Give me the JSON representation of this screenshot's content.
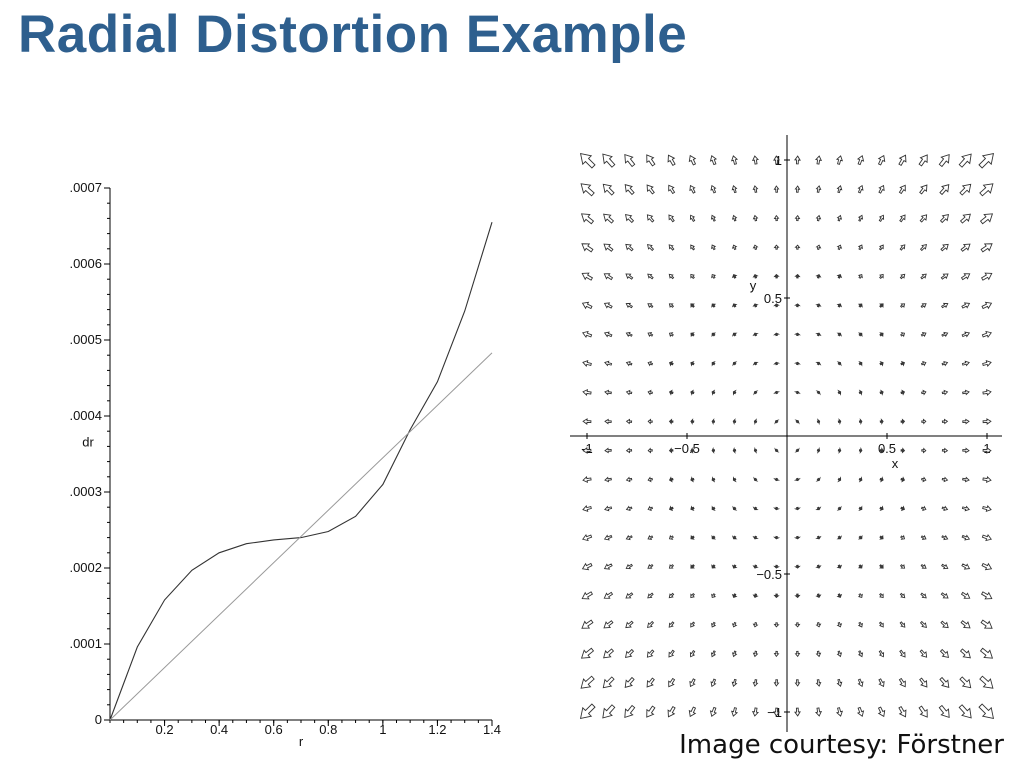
{
  "slide": {
    "title": "Radial Distortion Example",
    "courtesy": "Image courtesy: Förstner"
  },
  "chart_data": [
    {
      "type": "line",
      "xlabel": "r",
      "ylabel": "dr",
      "xlim": [
        0,
        1.4
      ],
      "ylim": [
        0,
        0.0007
      ],
      "x_ticks": [
        0.2,
        0.4,
        0.6,
        0.8,
        1,
        1.2,
        1.4
      ],
      "x_tick_labels": [
        "0.2",
        "0.4",
        "0.6",
        "0.8",
        "1",
        "1.2",
        "1.4"
      ],
      "y_ticks": [
        0,
        0.0001,
        0.0002,
        0.0003,
        0.0004,
        0.0005,
        0.0006,
        0.0007
      ],
      "y_tick_labels": [
        "0",
        ".0001",
        ".0002",
        ".0003",
        ".0004",
        ".0005",
        ".0006",
        ".0007"
      ],
      "grid": false,
      "series": [
        {
          "style": "dark",
          "x": [
            0,
            0.1,
            0.2,
            0.3,
            0.4,
            0.5,
            0.6,
            0.7,
            0.8,
            0.9,
            1.0,
            1.1,
            1.2,
            1.3,
            1.4
          ],
          "y": [
            0,
            9.6e-05,
            0.000158,
            0.000197,
            0.00022,
            0.000232,
            0.000237,
            0.00024,
            0.000248,
            0.000268,
            0.00031,
            0.000382,
            0.000445,
            0.000538,
            0.000655
          ]
        },
        {
          "style": "light",
          "x": [
            0,
            1.4
          ],
          "y": [
            0,
            0.000483
          ]
        }
      ]
    },
    {
      "type": "vector-field",
      "xlabel": "x",
      "ylabel": "y",
      "xlim": [
        -1,
        1
      ],
      "ylim": [
        -1,
        1
      ],
      "x_tick_labels": [
        "-1",
        "−0.5",
        "0.5",
        "1"
      ],
      "x_ticks": [
        -1,
        -0.5,
        0.5,
        1
      ],
      "y_tick_labels": [
        "1",
        "0.5",
        "−0.5",
        "−1"
      ],
      "y_ticks": [
        1,
        0.5,
        -0.5,
        -1
      ],
      "grid": false,
      "grid_points": 20,
      "field": "radial outward, magnitude increasing with distance from origin"
    }
  ]
}
